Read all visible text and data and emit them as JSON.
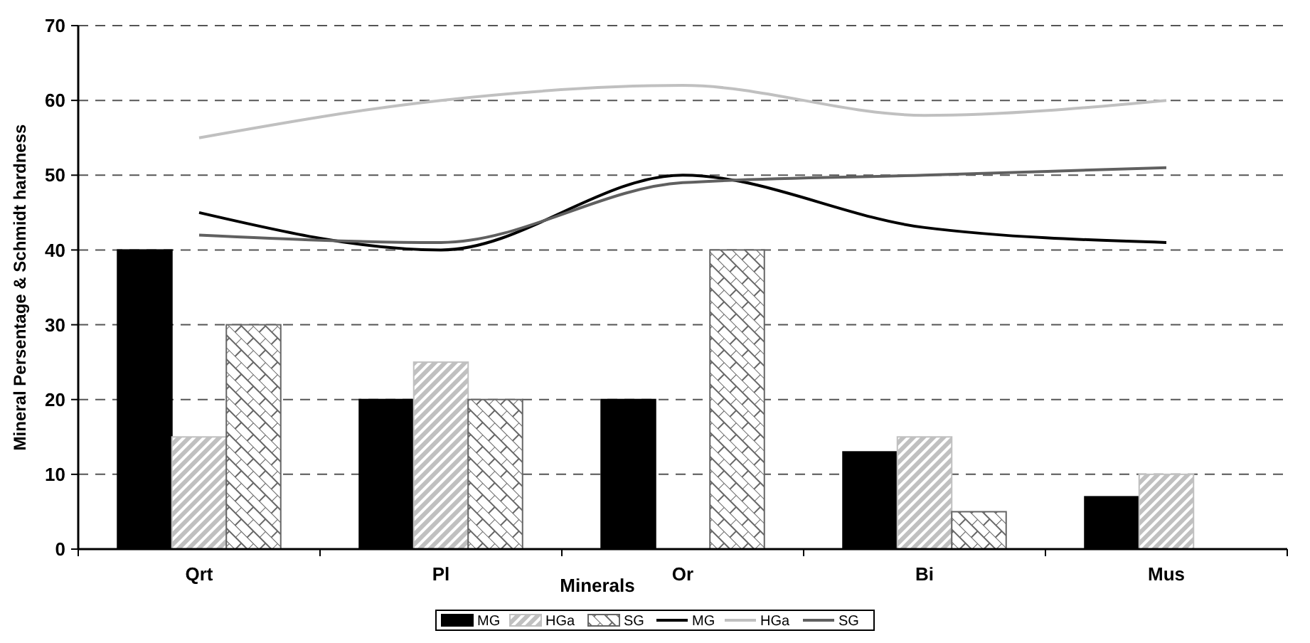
{
  "chart_data": {
    "type": "bar",
    "xlabel": "Minerals",
    "ylabel": "Mineral Persentage & Schmidt hardness",
    "categories": [
      "Qrt",
      "Pl",
      "Or",
      "Bi",
      "Mus"
    ],
    "series": [
      {
        "name": "MG",
        "color": "#000000",
        "values": [
          40,
          20,
          20,
          13,
          7
        ]
      },
      {
        "name": "HGa",
        "color": "#c0c0c0",
        "values": [
          15,
          25,
          null,
          15,
          10
        ]
      },
      {
        "name": "SG",
        "color": "#666666",
        "values": [
          30,
          20,
          40,
          5,
          null
        ]
      },
      {
        "name": "MG",
        "type": "line",
        "color": "#000000",
        "values": [
          45,
          40,
          50,
          43,
          41
        ]
      },
      {
        "name": "HGa",
        "type": "line",
        "color": "#c0c0c0",
        "values": [
          55,
          60,
          62,
          58,
          60
        ]
      },
      {
        "name": "SG",
        "type": "line",
        "color": "#606060",
        "values": [
          42,
          41,
          49,
          50,
          51
        ]
      }
    ],
    "ylim": [
      0,
      70
    ],
    "yticks": [
      0,
      10,
      20,
      30,
      40,
      50,
      60,
      70
    ],
    "grid": "y",
    "legend": "bottom",
    "marker": "none",
    "line_style": "solid"
  }
}
